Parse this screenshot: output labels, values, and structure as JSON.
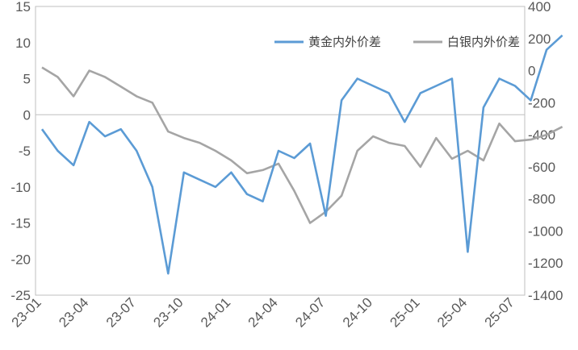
{
  "chart_data": {
    "type": "line",
    "title": "",
    "x_tick_labels": [
      "23-01",
      "23-04",
      "23-07",
      "23-10",
      "24-01",
      "24-04",
      "24-07",
      "24-10",
      "25-01",
      "25-04",
      "25-07"
    ],
    "y_left": {
      "min": -25,
      "max": 15,
      "ticks": [
        15,
        10,
        5,
        0,
        -5,
        -10,
        -15,
        -20,
        -25
      ]
    },
    "y_right": {
      "min": -1400,
      "max": 400,
      "ticks": [
        400,
        200,
        0,
        -200,
        -400,
        -600,
        -800,
        -1000,
        -1200,
        -1400
      ]
    },
    "legend_position": "top-right",
    "grid": false,
    "series": [
      {
        "name": "黄金内外价差",
        "axis": "left",
        "color": "#5B9BD5",
        "x": [
          "23-01",
          "23-02",
          "23-03",
          "23-04",
          "23-05",
          "23-06",
          "23-07",
          "23-08",
          "23-09",
          "23-10",
          "23-11",
          "23-12",
          "24-01",
          "24-02",
          "24-03",
          "24-04",
          "24-05",
          "24-06",
          "24-07",
          "24-08",
          "24-09",
          "24-10",
          "24-11",
          "24-12",
          "25-01",
          "25-02",
          "25-03",
          "25-04",
          "25-05",
          "25-06",
          "25-07",
          "25-08",
          "25-09",
          "25-10"
        ],
        "values": [
          -2,
          -5,
          -7,
          -1,
          -3,
          -2,
          -5,
          -10,
          -22,
          -8,
          -9,
          -10,
          -8,
          -11,
          -12,
          -5,
          -6,
          -4,
          -14,
          2,
          5,
          4,
          3,
          -1,
          3,
          4,
          5,
          -19,
          1,
          5,
          4,
          2,
          9,
          11
        ]
      },
      {
        "name": "白银内外价差",
        "axis": "right",
        "color": "#A5A5A5",
        "x": [
          "23-01",
          "23-02",
          "23-03",
          "23-04",
          "23-05",
          "23-06",
          "23-07",
          "23-08",
          "23-09",
          "23-10",
          "23-11",
          "23-12",
          "24-01",
          "24-02",
          "24-03",
          "24-04",
          "24-05",
          "24-06",
          "24-07",
          "24-08",
          "24-09",
          "24-10",
          "24-11",
          "24-12",
          "25-01",
          "25-02",
          "25-03",
          "25-04",
          "25-05",
          "25-06",
          "25-07",
          "25-08",
          "25-09",
          "25-10"
        ],
        "values": [
          20,
          -40,
          -160,
          0,
          -40,
          -100,
          -160,
          -200,
          -380,
          -420,
          -450,
          -500,
          -560,
          -640,
          -620,
          -580,
          -750,
          -950,
          -880,
          -780,
          -500,
          -410,
          -450,
          -470,
          -600,
          -420,
          -550,
          -500,
          -560,
          -330,
          -440,
          -430,
          -400,
          -350
        ]
      }
    ]
  }
}
